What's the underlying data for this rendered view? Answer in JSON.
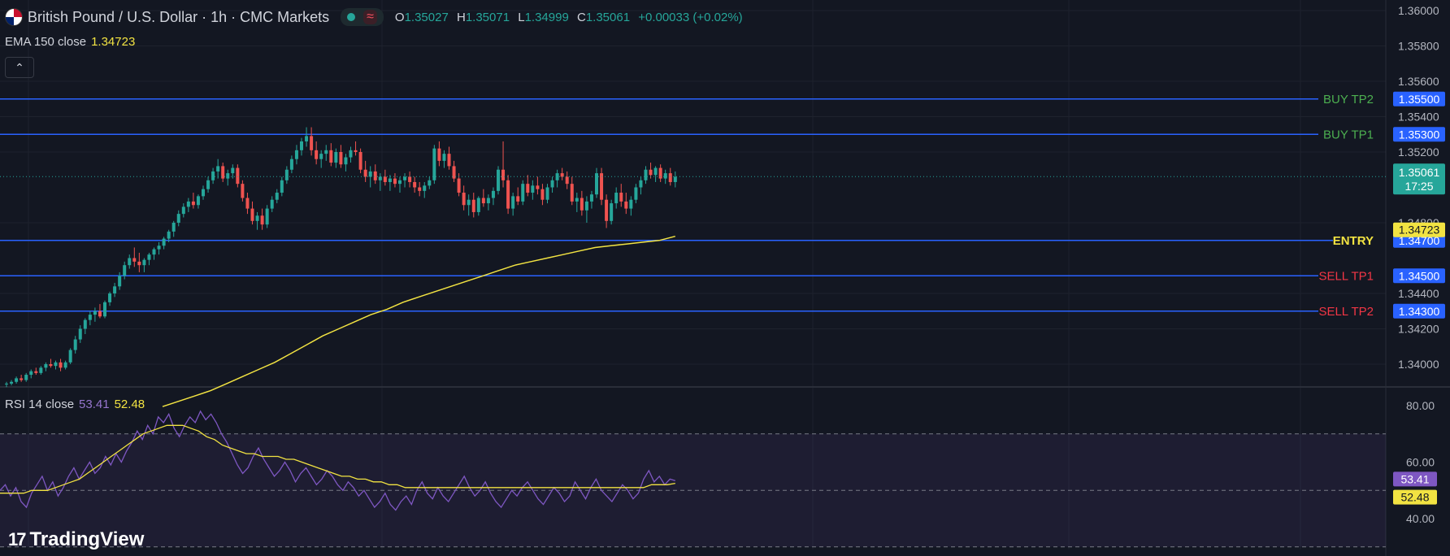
{
  "header": {
    "symbol_title": "British Pound / U.S. Dollar · 1h · CMC Markets",
    "ohlc": [
      {
        "k": "O",
        "v": "1.35027"
      },
      {
        "k": "H",
        "v": "1.35071"
      },
      {
        "k": "L",
        "v": "1.34999"
      },
      {
        "k": "C",
        "v": "1.35061"
      }
    ],
    "change": "+0.00033 (+0.02%)"
  },
  "ema_legend": {
    "label": "EMA 150 close",
    "value": "1.34723"
  },
  "rsi_legend": {
    "label": "RSI 14 close",
    "rsi_value": "53.41",
    "ma_value": "52.48"
  },
  "branding": {
    "name": "TradingView"
  },
  "colors": {
    "background": "#131722",
    "grid": "#1e222d",
    "up": "#26a69a",
    "down": "#ef5350",
    "level_line": "#2962ff",
    "ema": "#f2e342",
    "rsi": "#7e57c2",
    "rsi_ma": "#f2e342",
    "buy_text": "#4caf50",
    "sell_text": "#f23645",
    "entry_text": "#f2e342"
  },
  "chart_data": [
    {
      "type": "candlestick",
      "title": "British Pound / U.S. Dollar · 1h · CMC Markets",
      "ylim": [
        1.3388,
        1.3612
      ],
      "y_ticks": [
        "1.36000",
        "1.35800",
        "1.35600",
        "1.35400",
        "1.35200",
        "1.34800",
        "1.34400",
        "1.34200",
        "1.34000"
      ],
      "grid": true,
      "candles_ohlc_approx": [
        [
          1.3389,
          1.339,
          1.3387,
          1.3389
        ],
        [
          1.3389,
          1.3391,
          1.3388,
          1.339
        ],
        [
          1.339,
          1.3393,
          1.3389,
          1.3392
        ],
        [
          1.3392,
          1.3394,
          1.339,
          1.3391
        ],
        [
          1.3391,
          1.3395,
          1.339,
          1.3394
        ],
        [
          1.3394,
          1.3397,
          1.3392,
          1.3396
        ],
        [
          1.3396,
          1.3398,
          1.3394,
          1.3395
        ],
        [
          1.3395,
          1.3399,
          1.3394,
          1.3398
        ],
        [
          1.3398,
          1.3401,
          1.3396,
          1.34
        ],
        [
          1.34,
          1.3403,
          1.3398,
          1.3399
        ],
        [
          1.3399,
          1.3402,
          1.3397,
          1.3401
        ],
        [
          1.3401,
          1.3403,
          1.3396,
          1.3398
        ],
        [
          1.3398,
          1.3402,
          1.3397,
          1.3401
        ],
        [
          1.3401,
          1.3409,
          1.34,
          1.3408
        ],
        [
          1.3408,
          1.3416,
          1.3406,
          1.3414
        ],
        [
          1.3414,
          1.3422,
          1.3412,
          1.342
        ],
        [
          1.342,
          1.3426,
          1.3417,
          1.3425
        ],
        [
          1.3425,
          1.343,
          1.3422,
          1.3428
        ],
        [
          1.3428,
          1.3432,
          1.3424,
          1.343
        ],
        [
          1.343,
          1.3434,
          1.3426,
          1.3427
        ],
        [
          1.3427,
          1.3436,
          1.3426,
          1.3435
        ],
        [
          1.3435,
          1.3441,
          1.3433,
          1.344
        ],
        [
          1.344,
          1.3446,
          1.3438,
          1.3444
        ],
        [
          1.3444,
          1.3452,
          1.3442,
          1.345
        ],
        [
          1.345,
          1.3458,
          1.3448,
          1.3456
        ],
        [
          1.3456,
          1.3462,
          1.3454,
          1.346
        ],
        [
          1.346,
          1.3466,
          1.3455,
          1.3458
        ],
        [
          1.3458,
          1.3463,
          1.3452,
          1.3456
        ],
        [
          1.3456,
          1.346,
          1.3452,
          1.3459
        ],
        [
          1.3459,
          1.3463,
          1.3456,
          1.3462
        ],
        [
          1.3462,
          1.3466,
          1.3459,
          1.3465
        ],
        [
          1.3465,
          1.3469,
          1.3462,
          1.3467
        ],
        [
          1.3467,
          1.3472,
          1.3465,
          1.3471
        ],
        [
          1.3471,
          1.3476,
          1.3469,
          1.3475
        ],
        [
          1.3475,
          1.3481,
          1.3472,
          1.348
        ],
        [
          1.348,
          1.3487,
          1.3478,
          1.3485
        ],
        [
          1.3485,
          1.3491,
          1.3483,
          1.3489
        ],
        [
          1.3489,
          1.3494,
          1.3486,
          1.3492
        ],
        [
          1.3492,
          1.3497,
          1.3488,
          1.349
        ],
        [
          1.349,
          1.3496,
          1.3488,
          1.3495
        ],
        [
          1.3495,
          1.3501,
          1.3493,
          1.3499
        ],
        [
          1.3499,
          1.3506,
          1.3497,
          1.3504
        ],
        [
          1.3504,
          1.3511,
          1.3502,
          1.3509
        ],
        [
          1.3509,
          1.3516,
          1.3505,
          1.3512
        ],
        [
          1.3512,
          1.3514,
          1.3503,
          1.3505
        ],
        [
          1.3505,
          1.351,
          1.3501,
          1.3508
        ],
        [
          1.3508,
          1.3513,
          1.3505,
          1.3511
        ],
        [
          1.3511,
          1.3513,
          1.35,
          1.3502
        ],
        [
          1.3502,
          1.3504,
          1.3492,
          1.3494
        ],
        [
          1.3494,
          1.3497,
          1.3485,
          1.3488
        ],
        [
          1.3488,
          1.3492,
          1.3479,
          1.3481
        ],
        [
          1.3481,
          1.3486,
          1.3476,
          1.3484
        ],
        [
          1.3484,
          1.3488,
          1.3476,
          1.3479
        ],
        [
          1.3479,
          1.349,
          1.3477,
          1.3488
        ],
        [
          1.3488,
          1.3495,
          1.3486,
          1.3493
        ],
        [
          1.3493,
          1.3499,
          1.3491,
          1.3497
        ],
        [
          1.3497,
          1.3506,
          1.3495,
          1.3504
        ],
        [
          1.3504,
          1.3512,
          1.3502,
          1.351
        ],
        [
          1.351,
          1.3518,
          1.3508,
          1.3516
        ],
        [
          1.3516,
          1.3524,
          1.3513,
          1.3521
        ],
        [
          1.3521,
          1.3528,
          1.3518,
          1.3526
        ],
        [
          1.3526,
          1.3534,
          1.3523,
          1.3529
        ],
        [
          1.3529,
          1.3534,
          1.3518,
          1.3521
        ],
        [
          1.3521,
          1.3526,
          1.3513,
          1.3516
        ],
        [
          1.3516,
          1.3521,
          1.3511,
          1.3519
        ],
        [
          1.3519,
          1.3524,
          1.3515,
          1.3521
        ],
        [
          1.3521,
          1.3525,
          1.3512,
          1.3514
        ],
        [
          1.3514,
          1.3522,
          1.3511,
          1.352
        ],
        [
          1.352,
          1.3524,
          1.3511,
          1.3513
        ],
        [
          1.3513,
          1.3519,
          1.3509,
          1.3517
        ],
        [
          1.3517,
          1.3523,
          1.3514,
          1.3521
        ],
        [
          1.3521,
          1.3526,
          1.3518,
          1.352
        ],
        [
          1.352,
          1.3522,
          1.3508,
          1.351
        ],
        [
          1.351,
          1.3515,
          1.3503,
          1.3506
        ],
        [
          1.3506,
          1.3512,
          1.35,
          1.3509
        ],
        [
          1.3509,
          1.3513,
          1.3502,
          1.3504
        ],
        [
          1.3504,
          1.3508,
          1.3498,
          1.3506
        ],
        [
          1.3506,
          1.351,
          1.3501,
          1.3503
        ],
        [
          1.3503,
          1.3507,
          1.3498,
          1.3505
        ],
        [
          1.3505,
          1.3508,
          1.35,
          1.3502
        ],
        [
          1.3502,
          1.3506,
          1.3497,
          1.3504
        ],
        [
          1.3504,
          1.3508,
          1.35,
          1.3506
        ],
        [
          1.3506,
          1.3509,
          1.35,
          1.3503
        ],
        [
          1.3503,
          1.3506,
          1.3497,
          1.35
        ],
        [
          1.35,
          1.3503,
          1.3495,
          1.3498
        ],
        [
          1.3498,
          1.3503,
          1.3494,
          1.3501
        ],
        [
          1.3501,
          1.3506,
          1.3499,
          1.3504
        ],
        [
          1.3504,
          1.3524,
          1.3502,
          1.3522
        ],
        [
          1.3522,
          1.3526,
          1.3512,
          1.3515
        ],
        [
          1.3515,
          1.3521,
          1.3511,
          1.3519
        ],
        [
          1.3519,
          1.3523,
          1.351,
          1.3512
        ],
        [
          1.3512,
          1.3515,
          1.3503,
          1.3505
        ],
        [
          1.3505,
          1.3508,
          1.3495,
          1.3497
        ],
        [
          1.3497,
          1.3501,
          1.3487,
          1.349
        ],
        [
          1.349,
          1.3496,
          1.3484,
          1.3493
        ],
        [
          1.3493,
          1.3497,
          1.3483,
          1.3486
        ],
        [
          1.3486,
          1.3495,
          1.3484,
          1.3494
        ],
        [
          1.3494,
          1.3499,
          1.3489,
          1.3491
        ],
        [
          1.3491,
          1.3496,
          1.3487,
          1.3494
        ],
        [
          1.3494,
          1.35,
          1.349,
          1.3498
        ],
        [
          1.3498,
          1.3512,
          1.3496,
          1.351
        ],
        [
          1.351,
          1.3526,
          1.35,
          1.3504
        ],
        [
          1.3504,
          1.3507,
          1.3485,
          1.3488
        ],
        [
          1.3488,
          1.3497,
          1.3484,
          1.3495
        ],
        [
          1.3495,
          1.35,
          1.349,
          1.3492
        ],
        [
          1.3492,
          1.3504,
          1.349,
          1.3502
        ],
        [
          1.3502,
          1.3507,
          1.3495,
          1.3497
        ],
        [
          1.3497,
          1.3504,
          1.3493,
          1.3501
        ],
        [
          1.3501,
          1.3506,
          1.3496,
          1.3499
        ],
        [
          1.3499,
          1.3502,
          1.349,
          1.3493
        ],
        [
          1.3493,
          1.3502,
          1.3491,
          1.35
        ],
        [
          1.35,
          1.3506,
          1.3497,
          1.3504
        ],
        [
          1.3504,
          1.351,
          1.35,
          1.3508
        ],
        [
          1.3508,
          1.3511,
          1.3504,
          1.3506
        ],
        [
          1.3506,
          1.3509,
          1.3499,
          1.3502
        ],
        [
          1.3502,
          1.3506,
          1.349,
          1.3492
        ],
        [
          1.3492,
          1.3497,
          1.3486,
          1.3494
        ],
        [
          1.3494,
          1.3498,
          1.3484,
          1.3487
        ],
        [
          1.3487,
          1.3495,
          1.348,
          1.3492
        ],
        [
          1.3492,
          1.3498,
          1.3488,
          1.3496
        ],
        [
          1.3496,
          1.3511,
          1.3494,
          1.3508
        ],
        [
          1.3508,
          1.3511,
          1.349,
          1.3493
        ],
        [
          1.3493,
          1.3496,
          1.3477,
          1.3481
        ],
        [
          1.3481,
          1.3493,
          1.3479,
          1.3491
        ],
        [
          1.3491,
          1.35,
          1.3488,
          1.3497
        ],
        [
          1.3497,
          1.3502,
          1.3489,
          1.3492
        ],
        [
          1.3492,
          1.3497,
          1.3485,
          1.3488
        ],
        [
          1.3488,
          1.3495,
          1.3484,
          1.3493
        ],
        [
          1.3493,
          1.3502,
          1.3491,
          1.35
        ],
        [
          1.35,
          1.3506,
          1.3496,
          1.3504
        ],
        [
          1.3504,
          1.3512,
          1.3502,
          1.351
        ],
        [
          1.351,
          1.3514,
          1.3505,
          1.3507
        ],
        [
          1.3507,
          1.3512,
          1.3503,
          1.3511
        ],
        [
          1.3511,
          1.3513,
          1.3503,
          1.3505
        ],
        [
          1.3505,
          1.351,
          1.3502,
          1.3508
        ],
        [
          1.3508,
          1.3511,
          1.3501,
          1.3503
        ],
        [
          1.3503,
          1.3509,
          1.35,
          1.3506
        ]
      ],
      "ema_150_values_approx": [
        1.3376,
        1.3379,
        1.3382,
        1.3385,
        1.3389,
        1.3393,
        1.3397,
        1.3401,
        1.3406,
        1.3411,
        1.3416,
        1.342,
        1.3424,
        1.3428,
        1.3431,
        1.3435,
        1.3438,
        1.3441,
        1.3444,
        1.3447,
        1.345,
        1.3453,
        1.3456,
        1.3458,
        1.346,
        1.3462,
        1.3464,
        1.3466,
        1.3467,
        1.3468,
        1.3469,
        1.347,
        1.34723
      ],
      "last_price": "1.35061",
      "countdown": "17:25",
      "levels": [
        {
          "label": "BUY TP2",
          "value": "1.35500",
          "kind": "buy"
        },
        {
          "label": "BUY TP1",
          "value": "1.35300",
          "kind": "buy"
        },
        {
          "label": "ENTRY",
          "value": "1.34700",
          "kind": "entry"
        },
        {
          "label": "SELL TP1",
          "value": "1.34500",
          "kind": "sell"
        },
        {
          "label": "SELL TP2",
          "value": "1.34300",
          "kind": "sell"
        }
      ],
      "ema_tag": "1.34723"
    },
    {
      "type": "line",
      "title": "RSI 14 close",
      "ylim": [
        34,
        86
      ],
      "y_ticks": [
        "80.00",
        "60.00",
        "40.00"
      ],
      "band": [
        30,
        70
      ],
      "series": [
        {
          "name": "RSI",
          "values": [
            50,
            52,
            48,
            51,
            46,
            44,
            49,
            52,
            55,
            50,
            53,
            48,
            51,
            55,
            58,
            54,
            57,
            60,
            56,
            58,
            62,
            59,
            63,
            60,
            64,
            67,
            71,
            68,
            73,
            70,
            76,
            74,
            77,
            72,
            69,
            73,
            76,
            74,
            78,
            75,
            77,
            74,
            70,
            67,
            63,
            59,
            56,
            58,
            62,
            65,
            61,
            58,
            55,
            57,
            60,
            57,
            53,
            56,
            58,
            55,
            52,
            54,
            57,
            55,
            52,
            50,
            53,
            51,
            48,
            50,
            47,
            44,
            46,
            49,
            45,
            43,
            46,
            48,
            45,
            50,
            53,
            49,
            47,
            51,
            48,
            46,
            49,
            52,
            55,
            51,
            48,
            50,
            53,
            49,
            46,
            44,
            47,
            50,
            48,
            51,
            53,
            50,
            47,
            45,
            48,
            51,
            49,
            46,
            48,
            53,
            50,
            47,
            51,
            54,
            50,
            48,
            46,
            49,
            52,
            50,
            47,
            49,
            54,
            57,
            53,
            55,
            52,
            54,
            53.41
          ]
        },
        {
          "name": "RSI MA",
          "values": [
            49,
            49,
            49,
            49,
            50,
            50,
            50,
            51,
            52,
            53,
            54,
            56,
            58,
            60,
            62,
            64,
            66,
            68,
            70,
            71,
            72,
            73,
            73,
            73,
            72,
            71,
            69,
            68,
            66,
            65,
            64,
            63,
            63,
            62,
            62,
            62,
            61,
            61,
            60,
            59,
            58,
            57,
            56,
            55,
            55,
            54,
            54,
            53,
            53,
            52,
            52,
            51,
            51,
            51,
            51,
            51,
            51,
            51,
            51,
            51,
            51,
            51,
            51,
            51,
            51,
            51,
            51,
            51,
            51,
            51,
            51,
            51,
            51,
            51,
            51,
            51,
            51,
            51,
            51,
            51,
            51,
            51,
            52,
            52,
            52,
            52.48
          ]
        }
      ],
      "rsi_tag": "53.41",
      "ma_tag": "52.48"
    }
  ]
}
